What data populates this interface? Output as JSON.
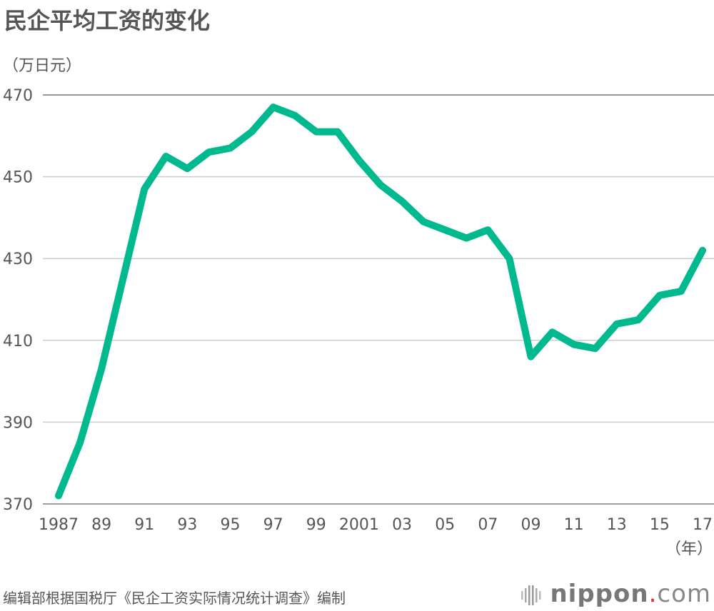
{
  "chart_data": {
    "type": "line",
    "title": "民企平均工资的变化",
    "ylabel": "（万日元）",
    "xlabel": "（年）",
    "ylim": [
      370,
      470
    ],
    "yticks": [
      370,
      390,
      410,
      430,
      450,
      470
    ],
    "grid": true,
    "x": [
      1987,
      1988,
      1989,
      1990,
      1991,
      1992,
      1993,
      1994,
      1995,
      1996,
      1997,
      1998,
      1999,
      2000,
      2001,
      2002,
      2003,
      2004,
      2005,
      2006,
      2007,
      2008,
      2009,
      2010,
      2011,
      2012,
      2013,
      2014,
      2015,
      2016,
      2017
    ],
    "xtick_labels": [
      {
        "x": 1987,
        "label": "1987"
      },
      {
        "x": 1989,
        "label": "89"
      },
      {
        "x": 1991,
        "label": "91"
      },
      {
        "x": 1993,
        "label": "93"
      },
      {
        "x": 1995,
        "label": "95"
      },
      {
        "x": 1997,
        "label": "97"
      },
      {
        "x": 1999,
        "label": "99"
      },
      {
        "x": 2001,
        "label": "2001"
      },
      {
        "x": 2003,
        "label": "03"
      },
      {
        "x": 2005,
        "label": "05"
      },
      {
        "x": 2007,
        "label": "07"
      },
      {
        "x": 2009,
        "label": "09"
      },
      {
        "x": 2011,
        "label": "11"
      },
      {
        "x": 2013,
        "label": "13"
      },
      {
        "x": 2015,
        "label": "15"
      },
      {
        "x": 2017,
        "label": "17"
      }
    ],
    "series": [
      {
        "values": [
          372,
          385,
          403,
          425,
          447,
          455,
          452,
          456,
          457,
          461,
          467,
          465,
          461,
          461,
          454,
          448,
          444,
          439,
          437,
          435,
          437,
          430,
          406,
          412,
          409,
          408,
          414,
          415,
          421,
          422,
          432
        ],
        "color": "#00b98e"
      }
    ]
  },
  "source": "编辑部根据国税厅《民企工资实际情况统计调查》编制",
  "logo": {
    "main": "nippon",
    "dot": ".",
    "suffix": "com"
  }
}
